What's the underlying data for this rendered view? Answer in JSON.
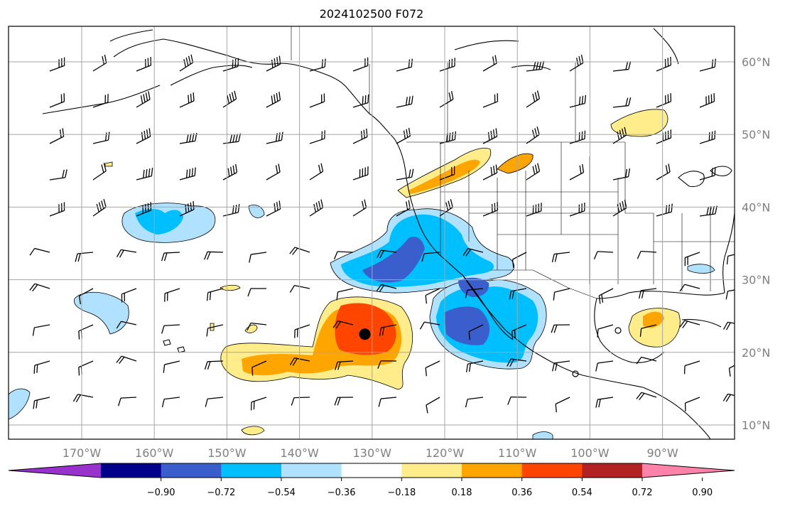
{
  "title": "2024102500 F072",
  "map": {
    "lat_ticks": [
      {
        "value": 60,
        "label": "60°N"
      },
      {
        "value": 50,
        "label": "50°N"
      },
      {
        "value": 40,
        "label": "40°N"
      },
      {
        "value": 30,
        "label": "30°N"
      },
      {
        "value": 20,
        "label": "20°N"
      },
      {
        "value": 10,
        "label": "10°N"
      }
    ],
    "lon_ticks": [
      {
        "value": -170,
        "label": "170°W"
      },
      {
        "value": -160,
        "label": "160°W"
      },
      {
        "value": -150,
        "label": "150°W"
      },
      {
        "value": -140,
        "label": "140°W"
      },
      {
        "value": -130,
        "label": "130°W"
      },
      {
        "value": -120,
        "label": "120°W"
      },
      {
        "value": -110,
        "label": "110°W"
      },
      {
        "value": -100,
        "label": "100°W"
      },
      {
        "value": -90,
        "label": "90°W"
      }
    ],
    "extent": {
      "lon_min": -180,
      "lon_max": -80,
      "lat_min": 8,
      "lat_max": 65
    },
    "marker": {
      "lon": -131,
      "lat": 22.5
    }
  },
  "colorbar": {
    "ticks": [
      "−0.90",
      "−0.72",
      "−0.54",
      "−0.36",
      "−0.18",
      "0.18",
      "0.36",
      "0.54",
      "0.72",
      "0.90"
    ],
    "colors": [
      "#9932cc",
      "#00008b",
      "#3a5fcd",
      "#00bfff",
      "#b0e2ff",
      "#ffffff",
      "#ffec8b",
      "#ffa500",
      "#ff4500",
      "#b22222",
      "#ff82ab"
    ]
  }
}
